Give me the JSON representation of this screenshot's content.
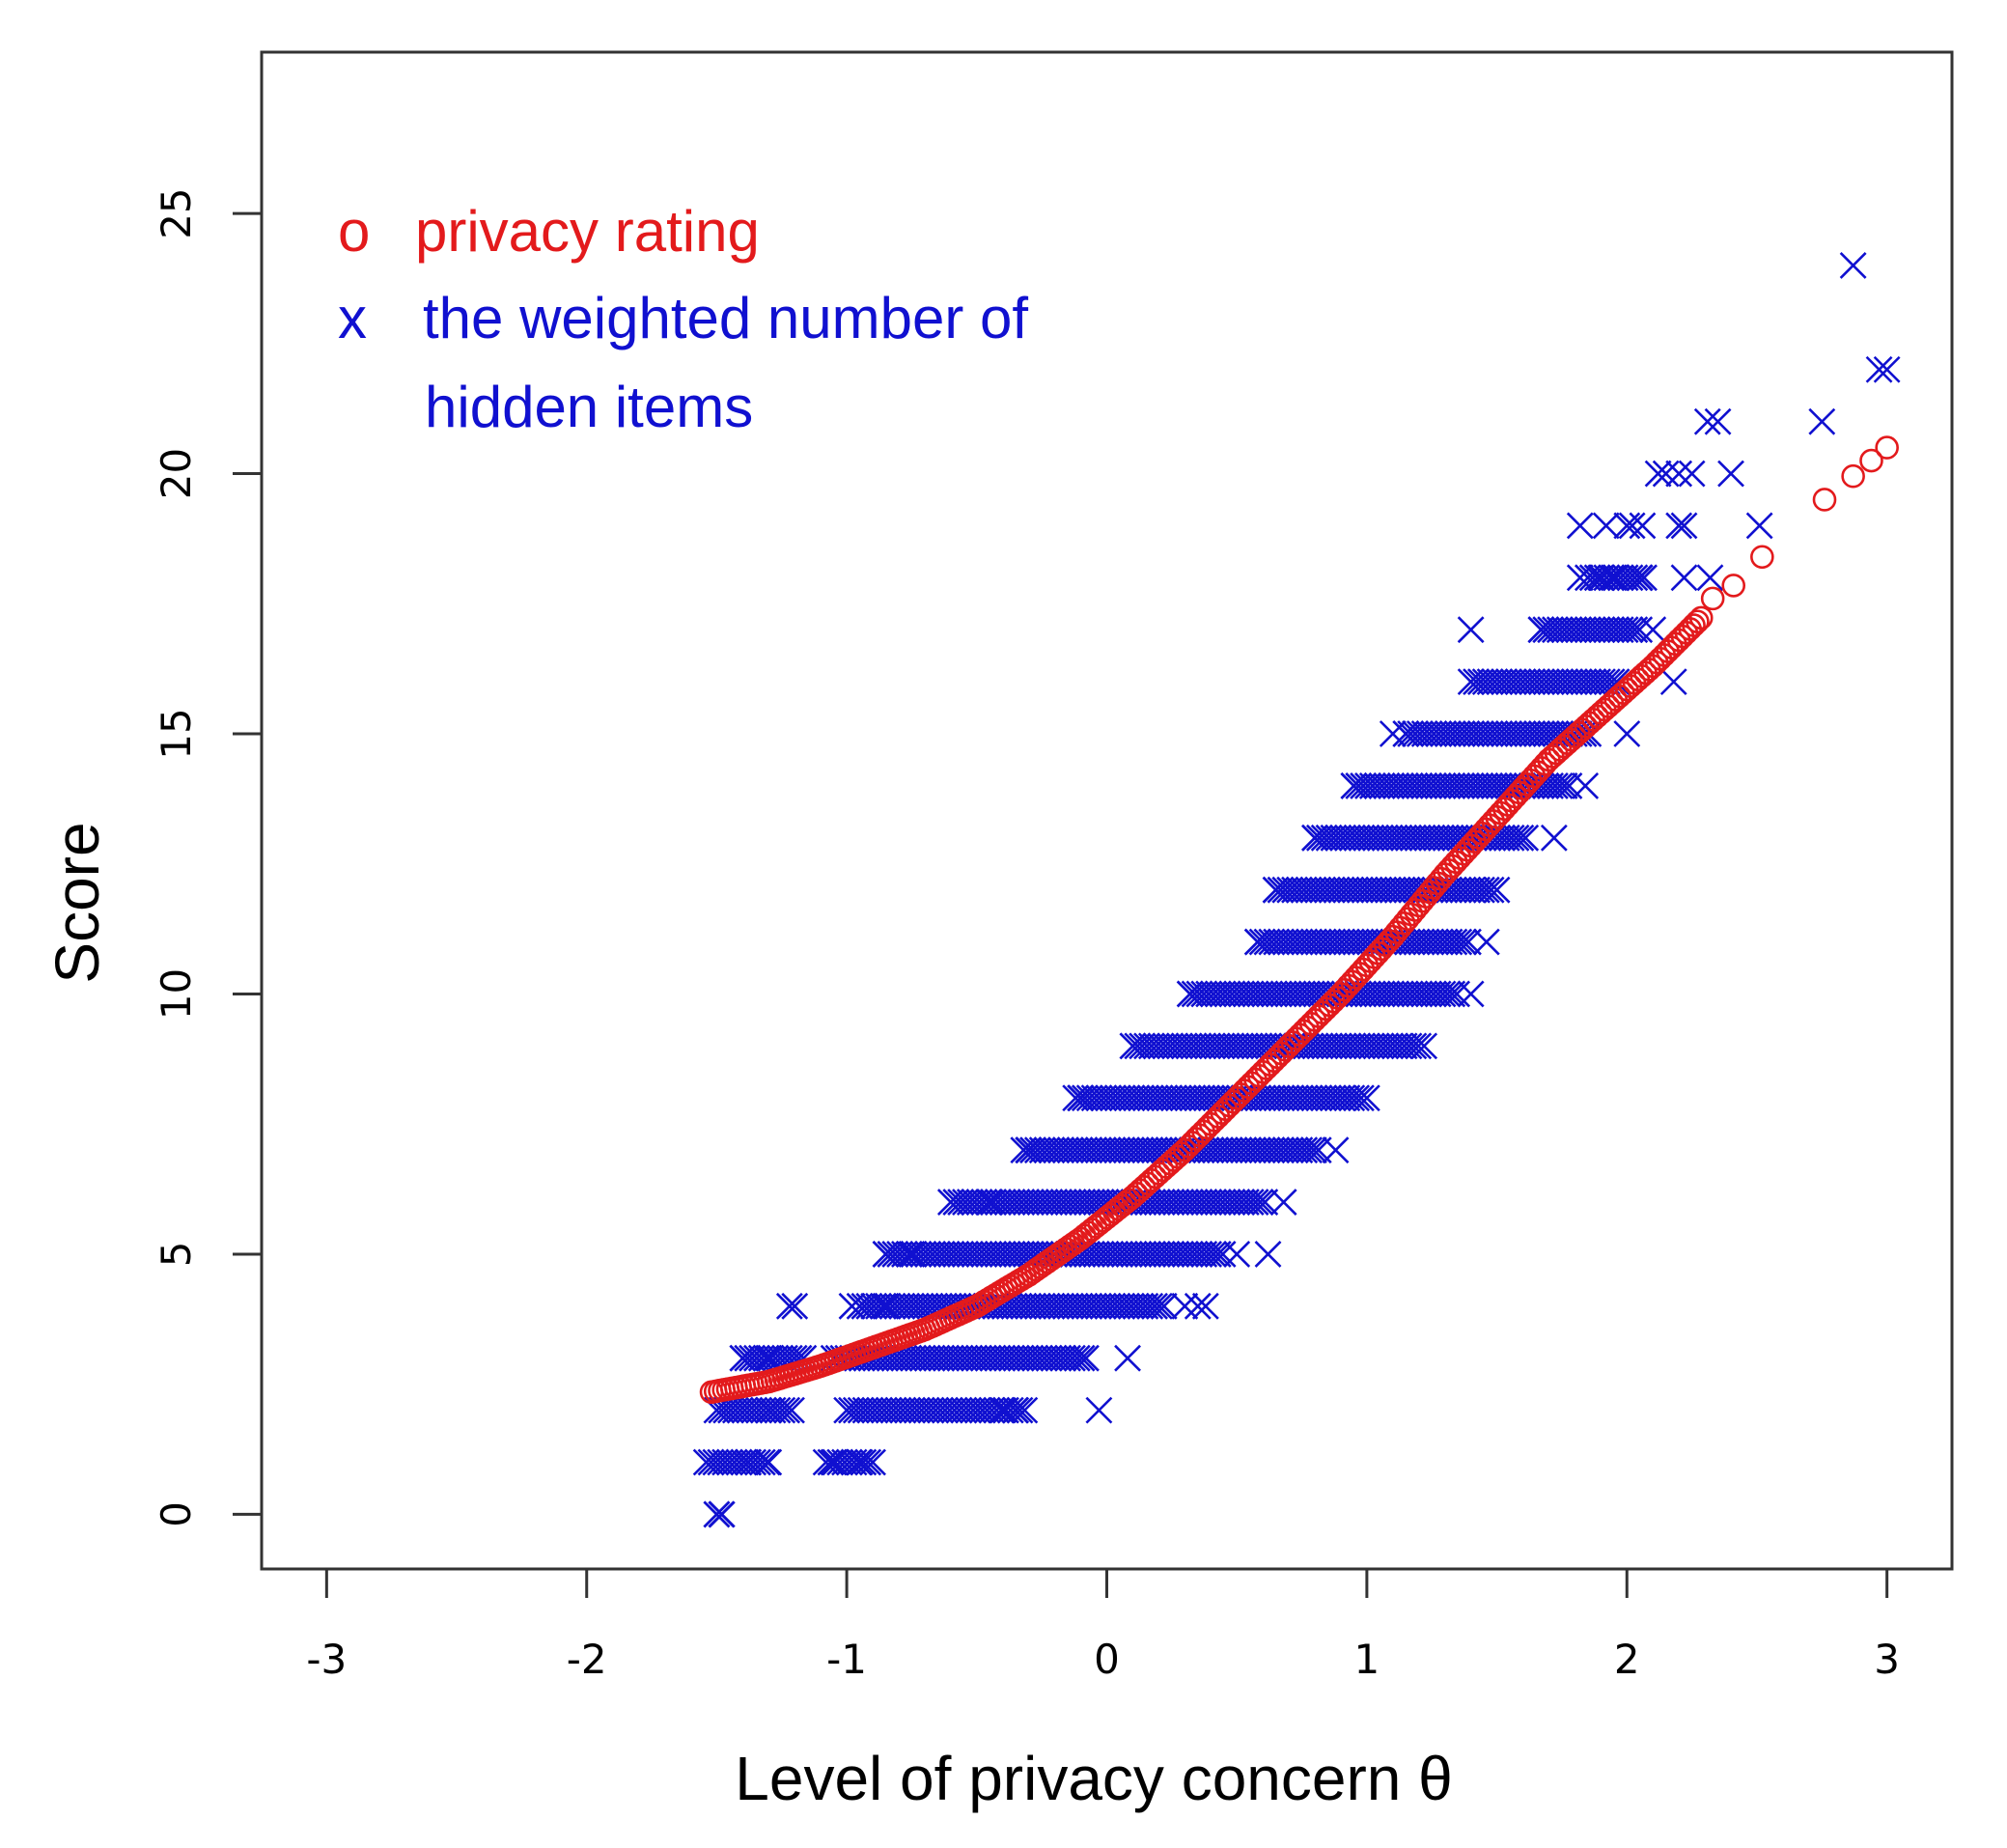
{
  "chart_data": {
    "type": "scatter",
    "title": "",
    "xlabel": "Level of privacy concern θ",
    "ylabel": "Score",
    "xlim": [
      -3.25,
      3.25
    ],
    "ylim": [
      -1.05,
      28.1
    ],
    "x_ticks": [
      "-3",
      "-2",
      "-1",
      "0",
      "1",
      "2",
      "3"
    ],
    "y_ticks": [
      "0",
      "5",
      "10",
      "15",
      "20",
      "25"
    ],
    "grid": false,
    "legend_position": "top-left",
    "colors": {
      "privacy_rating": "#e31a1c",
      "hidden_items": "#1010d0"
    },
    "legend": {
      "rating_marker": "o",
      "rating_label": "privacy rating",
      "items_marker": "x",
      "items_label_line1": "the weighted number of",
      "items_label_line2": "hidden items"
    },
    "series": [
      {
        "name": "privacy rating",
        "marker": "circle",
        "curve": [
          [
            -1.52,
            2.35
          ],
          [
            -1.3,
            2.55
          ],
          [
            -1.1,
            2.85
          ],
          [
            -0.9,
            3.2
          ],
          [
            -0.7,
            3.55
          ],
          [
            -0.5,
            4.0
          ],
          [
            -0.3,
            4.6
          ],
          [
            -0.1,
            5.3
          ],
          [
            0.1,
            6.1
          ],
          [
            0.3,
            7.0
          ],
          [
            0.5,
            8.0
          ],
          [
            0.7,
            9.0
          ],
          [
            0.9,
            10.0
          ],
          [
            1.1,
            11.1
          ],
          [
            1.3,
            12.3
          ],
          [
            1.5,
            13.4
          ],
          [
            1.7,
            14.5
          ],
          [
            1.9,
            15.4
          ],
          [
            2.1,
            16.3
          ],
          [
            2.3,
            17.3
          ]
        ],
        "sparse_points": [
          [
            2.33,
            17.6
          ],
          [
            2.41,
            17.85
          ],
          [
            2.52,
            18.4
          ],
          [
            2.76,
            19.5
          ],
          [
            2.87,
            19.95
          ],
          [
            2.94,
            20.25
          ],
          [
            3.0,
            20.5
          ]
        ]
      },
      {
        "name": "the weighted number of hidden items",
        "marker": "x",
        "bands": [
          {
            "y": 0,
            "xmin": -1.5,
            "xmax": -1.48
          },
          {
            "y": 1,
            "xmin": -1.54,
            "xmax": -1.3
          },
          {
            "y": 1,
            "xmin": -1.08,
            "xmax": -0.9
          },
          {
            "y": 2,
            "xmin": -1.5,
            "xmax": -1.2
          },
          {
            "y": 2,
            "xmin": -1.0,
            "xmax": -0.3
          },
          {
            "y": 3,
            "xmin": -1.4,
            "xmax": -1.15
          },
          {
            "y": 3,
            "xmin": -1.05,
            "xmax": -0.08
          },
          {
            "y": 4,
            "xmin": -0.95,
            "xmax": 0.22
          },
          {
            "y": 5,
            "xmin": -0.85,
            "xmax": 0.45
          },
          {
            "y": 6,
            "xmin": -0.58,
            "xmax": 0.62
          },
          {
            "y": 7,
            "xmin": -0.32,
            "xmax": 0.82
          },
          {
            "y": 8,
            "xmin": -0.12,
            "xmax": 0.98
          },
          {
            "y": 9,
            "xmin": 0.1,
            "xmax": 1.2
          },
          {
            "y": 10,
            "xmin": 0.32,
            "xmax": 1.35
          },
          {
            "y": 11,
            "xmin": 0.58,
            "xmax": 1.4
          },
          {
            "y": 12,
            "xmin": 0.65,
            "xmax": 1.48
          },
          {
            "y": 13,
            "xmin": 0.8,
            "xmax": 1.62
          },
          {
            "y": 14,
            "xmin": 0.95,
            "xmax": 1.78
          },
          {
            "y": 15,
            "xmin": 1.15,
            "xmax": 1.86
          },
          {
            "y": 16,
            "xmin": 1.42,
            "xmax": 1.96
          },
          {
            "y": 17,
            "xmin": 1.67,
            "xmax": 2.05
          },
          {
            "y": 18,
            "xmin": 1.85,
            "xmax": 2.08
          }
        ],
        "points": [
          [
            -1.5,
            0
          ],
          [
            -1.48,
            0
          ],
          [
            -1.2,
            4
          ],
          [
            -1.22,
            4
          ],
          [
            -0.98,
            4
          ],
          [
            -0.85,
            4
          ],
          [
            0.3,
            4
          ],
          [
            0.35,
            4
          ],
          [
            0.38,
            4
          ],
          [
            -0.85,
            5
          ],
          [
            -0.75,
            5
          ],
          [
            0.5,
            5
          ],
          [
            0.62,
            5
          ],
          [
            -0.6,
            6
          ],
          [
            -0.45,
            6
          ],
          [
            0.68,
            6
          ],
          [
            -0.3,
            7
          ],
          [
            0.88,
            7
          ],
          [
            -0.1,
            8
          ],
          [
            1.0,
            8
          ],
          [
            0.1,
            9
          ],
          [
            1.22,
            9
          ],
          [
            0.32,
            10
          ],
          [
            1.4,
            10
          ],
          [
            0.58,
            11
          ],
          [
            1.46,
            11
          ],
          [
            0.65,
            12
          ],
          [
            1.5,
            12
          ],
          [
            0.8,
            13
          ],
          [
            1.72,
            13
          ],
          [
            1.1,
            15
          ],
          [
            1.15,
            15
          ],
          [
            2.0,
            15
          ],
          [
            0.95,
            14
          ],
          [
            1.84,
            14
          ],
          [
            1.4,
            16
          ],
          [
            2.18,
            16
          ],
          [
            1.4,
            17
          ],
          [
            1.67,
            17
          ],
          [
            2.1,
            17
          ],
          [
            -1.4,
            3
          ],
          [
            -1.3,
            3
          ],
          [
            -0.08,
            3
          ],
          [
            0.08,
            3
          ],
          [
            -1.3,
            2
          ],
          [
            -0.4,
            2
          ],
          [
            -0.35,
            2
          ],
          [
            -0.03,
            2
          ],
          [
            -1.3,
            1
          ],
          [
            -1.38,
            1
          ],
          [
            -1.05,
            1
          ],
          [
            -0.95,
            1
          ],
          [
            1.82,
            18
          ],
          [
            1.9,
            18
          ],
          [
            1.95,
            18
          ],
          [
            2.05,
            18
          ],
          [
            2.22,
            18
          ],
          [
            2.32,
            18
          ],
          [
            1.82,
            19
          ],
          [
            1.92,
            19
          ],
          [
            2.0,
            19
          ],
          [
            2.02,
            19
          ],
          [
            2.06,
            19
          ],
          [
            2.2,
            19
          ],
          [
            2.22,
            19
          ],
          [
            2.51,
            19
          ],
          [
            2.12,
            20
          ],
          [
            2.15,
            20
          ],
          [
            2.2,
            20
          ],
          [
            2.25,
            20
          ],
          [
            2.4,
            20
          ],
          [
            2.31,
            21
          ],
          [
            2.35,
            21
          ],
          [
            2.75,
            21
          ],
          [
            2.97,
            22
          ],
          [
            3.0,
            22
          ],
          [
            2.87,
            24
          ]
        ]
      }
    ]
  }
}
